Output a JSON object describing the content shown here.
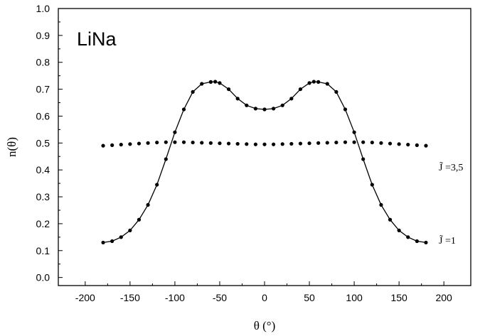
{
  "chart_data": {
    "type": "line",
    "title": "",
    "panel_label": "LiNa",
    "xlabel": "θ (°)",
    "ylabel": "n(θ)",
    "xlim": [
      -230,
      230
    ],
    "ylim": [
      -0.03,
      1.0
    ],
    "x_ticks": [
      -200,
      -150,
      -100,
      -50,
      0,
      50,
      100,
      150,
      200
    ],
    "y_ticks": [
      0.0,
      0.1,
      0.2,
      0.3,
      0.4,
      0.5,
      0.6,
      0.7,
      0.8,
      0.9,
      1.0
    ],
    "x_tick_labels": [
      "-200",
      "-150",
      "-100",
      "-50",
      "0",
      "50",
      "100",
      "150",
      "200"
    ],
    "y_tick_labels": [
      "0.0",
      "0.1",
      "0.2",
      "0.3",
      "0.4",
      "0.5",
      "0.6",
      "0.7",
      "0.8",
      "0.9",
      "1.0"
    ],
    "grid": false,
    "series": [
      {
        "name": "J̃ =1",
        "style": "line+points",
        "x": [
          -180,
          -170,
          -160,
          -150,
          -140,
          -130,
          -120,
          -110,
          -100,
          -90,
          -80,
          -70,
          -60,
          -55,
          -50,
          -40,
          -30,
          -20,
          -10,
          0,
          10,
          20,
          30,
          40,
          50,
          55,
          60,
          70,
          80,
          90,
          100,
          110,
          120,
          130,
          140,
          150,
          160,
          170,
          180
        ],
        "y": [
          0.13,
          0.135,
          0.15,
          0.175,
          0.215,
          0.27,
          0.345,
          0.44,
          0.54,
          0.625,
          0.69,
          0.72,
          0.727,
          0.728,
          0.723,
          0.7,
          0.665,
          0.64,
          0.628,
          0.625,
          0.628,
          0.64,
          0.665,
          0.7,
          0.723,
          0.728,
          0.727,
          0.72,
          0.69,
          0.625,
          0.54,
          0.44,
          0.345,
          0.27,
          0.215,
          0.175,
          0.15,
          0.135,
          0.13
        ]
      },
      {
        "name": "J̃ =3,5",
        "style": "points",
        "x": [
          -180,
          -170,
          -160,
          -150,
          -140,
          -130,
          -120,
          -110,
          -100,
          -90,
          -80,
          -70,
          -60,
          -50,
          -40,
          -30,
          -20,
          -10,
          0,
          10,
          20,
          30,
          40,
          50,
          60,
          70,
          80,
          90,
          100,
          110,
          120,
          130,
          140,
          150,
          160,
          170,
          180
        ],
        "y": [
          0.49,
          0.492,
          0.494,
          0.496,
          0.498,
          0.5,
          0.502,
          0.503,
          0.503,
          0.503,
          0.502,
          0.501,
          0.5,
          0.499,
          0.498,
          0.497,
          0.496,
          0.495,
          0.495,
          0.495,
          0.496,
          0.497,
          0.498,
          0.499,
          0.5,
          0.501,
          0.502,
          0.503,
          0.503,
          0.503,
          0.502,
          0.5,
          0.498,
          0.496,
          0.494,
          0.492,
          0.49
        ]
      }
    ]
  }
}
